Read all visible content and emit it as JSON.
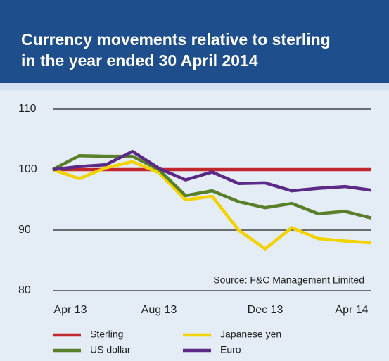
{
  "chart_data": {
    "type": "line",
    "title": [
      "Currency movements relative to sterling",
      "in the year ended 30 April 2014"
    ],
    "annotation": "Source: F&C Management Limited",
    "categories": [
      "Apr 13",
      null,
      null,
      null,
      "Aug 13",
      null,
      null,
      null,
      "Dec 13",
      null,
      null,
      null,
      "Apr 14"
    ],
    "series": [
      {
        "name": "Sterling",
        "color": "#c1272d",
        "values": [
          100,
          100,
          100,
          100,
          100,
          100,
          100,
          100,
          100,
          100,
          100,
          100,
          100
        ]
      },
      {
        "name": "Japanese yen",
        "color": "#f2d300",
        "values": [
          100,
          98.5,
          100.3,
          101.3,
          99.5,
          95,
          95.6,
          90,
          86.9,
          90.4,
          88.6,
          88.2,
          87.9
        ]
      },
      {
        "name": "US dollar",
        "color": "#5a7f2a",
        "values": [
          100,
          102.3,
          102.2,
          102.2,
          100,
          95.7,
          96.5,
          94.7,
          93.7,
          94.4,
          92.7,
          93.1,
          92
        ]
      },
      {
        "name": "Euro",
        "color": "#5b2a86",
        "values": [
          100,
          100.5,
          100.8,
          103,
          100.2,
          98.3,
          99.6,
          97.7,
          97.8,
          96.5,
          96.9,
          97.2,
          96.6
        ]
      }
    ],
    "ylim": [
      80,
      110
    ],
    "yticks": [
      80,
      90,
      100,
      110
    ],
    "grid": true
  }
}
